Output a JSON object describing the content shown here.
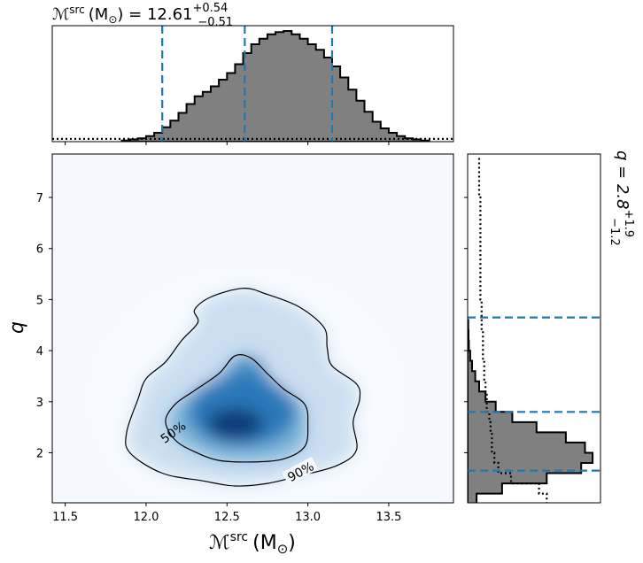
{
  "chart_data": [
    {
      "type": "heatmap",
      "panel": "joint-posterior",
      "xlabel_main": "ℳ",
      "xlabel_sup": "src",
      "xlabel_unit": "(M",
      "xlabel_sun": "⊙",
      "xlabel_close": ")",
      "ylabel": "q",
      "xlim": [
        11.42,
        13.9
      ],
      "ylim": [
        1.02,
        7.85
      ],
      "xticks": [
        11.5,
        12.0,
        12.5,
        13.0,
        13.5
      ],
      "xtick_labels": [
        "11.5",
        "12.0",
        "12.5",
        "13.0",
        "13.5"
      ],
      "yticks": [
        2,
        3,
        4,
        5,
        6,
        7
      ],
      "ytick_labels": [
        "2",
        "3",
        "4",
        "5",
        "6",
        "7"
      ],
      "colormap": [
        "#f7fbff",
        "#c6dbef",
        "#6baed6",
        "#2171b5",
        "#08306b"
      ],
      "density_peak": {
        "x": 12.55,
        "y": 2.6
      },
      "contours": [
        {
          "label": "50%",
          "points": [
            [
              12.18,
              2.25
            ],
            [
              12.3,
              2.02
            ],
            [
              12.45,
              1.85
            ],
            [
              12.65,
              1.82
            ],
            [
              12.85,
              1.88
            ],
            [
              12.98,
              2.12
            ],
            [
              13.0,
              2.55
            ],
            [
              12.98,
              2.95
            ],
            [
              12.85,
              3.25
            ],
            [
              12.75,
              3.55
            ],
            [
              12.65,
              3.85
            ],
            [
              12.55,
              3.9
            ],
            [
              12.45,
              3.55
            ],
            [
              12.3,
              3.22
            ],
            [
              12.18,
              2.95
            ],
            [
              12.12,
              2.62
            ]
          ]
        },
        {
          "label": "90%",
          "points": [
            [
              11.88,
              2.4
            ],
            [
              11.9,
              2.0
            ],
            [
              12.1,
              1.6
            ],
            [
              12.35,
              1.45
            ],
            [
              12.55,
              1.35
            ],
            [
              12.75,
              1.4
            ],
            [
              12.95,
              1.55
            ],
            [
              13.18,
              1.75
            ],
            [
              13.3,
              2.05
            ],
            [
              13.28,
              2.6
            ],
            [
              13.32,
              3.05
            ],
            [
              13.3,
              3.35
            ],
            [
              13.15,
              3.7
            ],
            [
              13.12,
              4.05
            ],
            [
              13.1,
              4.45
            ],
            [
              12.95,
              4.85
            ],
            [
              12.75,
              5.1
            ],
            [
              12.6,
              5.22
            ],
            [
              12.4,
              5.05
            ],
            [
              12.3,
              4.8
            ],
            [
              12.32,
              4.55
            ],
            [
              12.22,
              4.2
            ],
            [
              12.12,
              3.78
            ],
            [
              12.0,
              3.45
            ],
            [
              11.95,
              3.05
            ]
          ]
        }
      ]
    },
    {
      "type": "histogram",
      "panel": "top-marginal",
      "title_main": "ℳ",
      "title_sup": "src",
      "title_unit": "(M",
      "title_sun": "⊙",
      "title_eq": ") = 12.61",
      "title_plus": "+0.54",
      "title_minus": "−0.51",
      "median": 12.61,
      "lower": 12.1,
      "upper": 13.15,
      "bin_start": 11.85,
      "bin_width": 0.05,
      "values": [
        0.01,
        0.02,
        0.03,
        0.05,
        0.08,
        0.13,
        0.19,
        0.26,
        0.34,
        0.41,
        0.45,
        0.5,
        0.56,
        0.62,
        0.7,
        0.8,
        0.88,
        0.93,
        0.97,
        0.99,
        1.0,
        0.97,
        0.93,
        0.88,
        0.83,
        0.76,
        0.68,
        0.58,
        0.47,
        0.37,
        0.27,
        0.18,
        0.12,
        0.08,
        0.05,
        0.03,
        0.02,
        0.01
      ],
      "prior_level": 0.025
    },
    {
      "type": "histogram",
      "panel": "right-marginal",
      "title_main": "q = 2.8",
      "title_plus": "+1.9",
      "title_minus": "−1.2",
      "median": 2.8,
      "lower": 1.65,
      "upper": 4.65,
      "bin_start": 1.0,
      "bin_width": 0.2,
      "values": [
        0.07,
        0.27,
        0.62,
        0.89,
        0.98,
        0.92,
        0.77,
        0.54,
        0.35,
        0.22,
        0.14,
        0.09,
        0.06,
        0.035,
        0.02,
        0.01,
        0.007,
        0.005
      ],
      "prior_values": [
        0.62,
        0.56,
        0.34,
        0.24,
        0.21,
        0.19,
        0.19,
        0.18,
        0.17,
        0.15,
        0.15,
        0.14,
        0.13,
        0.13,
        0.12,
        0.12,
        0.12,
        0.11,
        0.11,
        0.11,
        0.1,
        0.1,
        0.1,
        0.1,
        0.1,
        0.1,
        0.1,
        0.1,
        0.1,
        0.1,
        0.09,
        0.09,
        0.09,
        0.09
      ]
    }
  ]
}
